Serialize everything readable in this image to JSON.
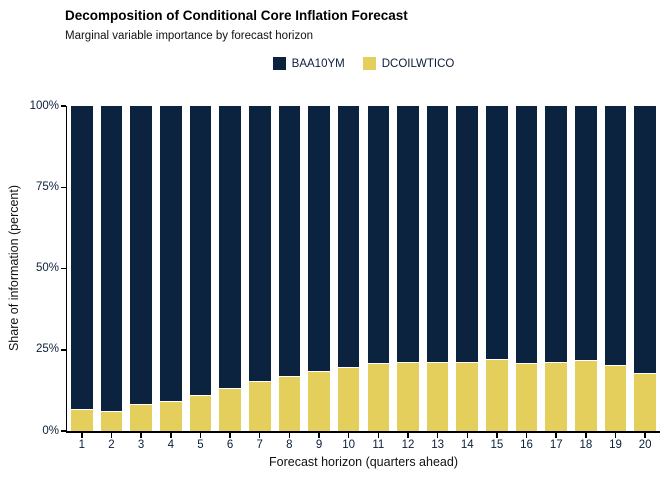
{
  "header": {
    "title": "Decomposition of Conditional Core Inflation Forecast",
    "subtitle": "Marginal variable importance by forecast horizon"
  },
  "colors": {
    "baa10ym": "#0C2340",
    "dcoilwtico": "#E4CE5C",
    "axis": "#000000",
    "tick_text": "#0b1f3a"
  },
  "legend": {
    "items": [
      {
        "label": "BAA10YM",
        "color": "#0C2340"
      },
      {
        "label": "DCOILWTICO",
        "color": "#E4CE5C"
      }
    ]
  },
  "chart_data": {
    "type": "bar",
    "stacked": true,
    "title": "Decomposition of Conditional Core Inflation Forecast",
    "subtitle": "Marginal variable importance by forecast horizon",
    "xlabel": "Forecast horizon (quarters ahead)",
    "ylabel": "Share of information (percent)",
    "ylim": [
      0,
      100
    ],
    "yticks": [
      {
        "value": 0,
        "label": "0%"
      },
      {
        "value": 25,
        "label": "25%"
      },
      {
        "value": 50,
        "label": "50%"
      },
      {
        "value": 75,
        "label": "75%"
      },
      {
        "value": 100,
        "label": "100%"
      }
    ],
    "grid": false,
    "legend_position": "top-center",
    "categories": [
      "1",
      "2",
      "3",
      "4",
      "5",
      "6",
      "7",
      "8",
      "9",
      "10",
      "11",
      "12",
      "13",
      "14",
      "15",
      "16",
      "17",
      "18",
      "19",
      "20"
    ],
    "series": [
      {
        "name": "DCOILWTICO",
        "color": "#E4CE5C",
        "position": "bottom",
        "values": [
          6.7,
          6.3,
          8.3,
          9.2,
          11.2,
          13.3,
          15.5,
          16.9,
          18.4,
          19.7,
          20.8,
          21.1,
          21.4,
          21.1,
          22.2,
          20.8,
          21.1,
          21.9,
          20.3,
          18.0
        ]
      },
      {
        "name": "BAA10YM",
        "color": "#0C2340",
        "position": "top",
        "values": [
          93.3,
          93.7,
          91.7,
          90.8,
          88.8,
          86.7,
          84.5,
          83.1,
          81.6,
          80.3,
          79.2,
          78.9,
          78.6,
          78.9,
          77.8,
          79.2,
          78.9,
          78.1,
          79.7,
          82.0
        ]
      }
    ]
  }
}
